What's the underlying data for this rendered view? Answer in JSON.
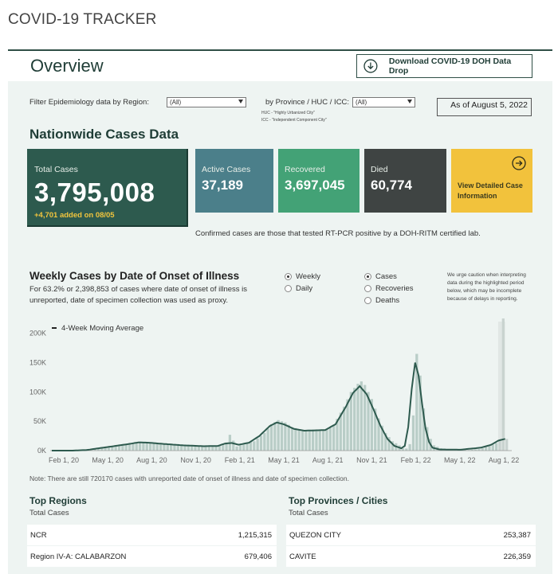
{
  "app_title": "COVID-19 TRACKER",
  "overview": {
    "title": "Overview",
    "download_label": "Download COVID-19 DOH Data Drop",
    "download_icon": "download-circle-icon"
  },
  "filters": {
    "region_label": "Filter Epidemiology data by Region:",
    "region_value": "(All)",
    "province_label": "by Province / HUC / ICC:",
    "province_value": "(All)",
    "huc_note": "HUC - \"Highly Urbanized City\"",
    "icc_note": "ICC - \"Independent Component City\"",
    "as_of": "As of August 5, 2022"
  },
  "nationwide": {
    "title": "Nationwide Cases Data",
    "total": {
      "label": "Total Cases",
      "value": "3,795,008",
      "added": "+4,701 added on 08/05"
    },
    "active": {
      "label": "Active Cases",
      "value": "37,189"
    },
    "recovered": {
      "label": "Recovered",
      "value": "3,697,045"
    },
    "died": {
      "label": "Died",
      "value": "60,774"
    },
    "detail_label": "View Detailed Case Information",
    "detail_icon": "arrow-right-circle-icon",
    "confirmed_note": "Confirmed cases are those that tested RT-PCR positive by a DOH-RITM certified lab.",
    "colors": {
      "total": "#2d5a4e",
      "active": "#4b7f8a",
      "recovered": "#43a276",
      "died": "#3f4443",
      "detail": "#f2c23c"
    }
  },
  "weekly": {
    "title": "Weekly Cases by Date of Onset of Illness",
    "subtitle": "For 63.2% or 2,398,853 of cases where date of onset of illness is unreported, date of specimen collection was used as proxy.",
    "period_options": [
      {
        "label": "Weekly",
        "selected": true
      },
      {
        "label": "Daily",
        "selected": false
      }
    ],
    "metric_options": [
      {
        "label": "Cases",
        "selected": true
      },
      {
        "label": "Recoveries",
        "selected": false
      },
      {
        "label": "Deaths",
        "selected": false
      }
    ],
    "caution": "We urge caution when interpreting data during the highlighted period below, which may be incomplete because of delays in reporting.",
    "note": "Note: There are still 720170 cases with unreported date of onset of illness and date of specimen collection."
  },
  "chart_data": {
    "type": "bar",
    "legend": "4-Week Moving Average",
    "legend_position": "top-left",
    "y_ticks": [
      "200K",
      "150K",
      "100K",
      "50K",
      "0K"
    ],
    "x_ticks": [
      "Feb 1, 20",
      "May 1, 20",
      "Aug 1, 20",
      "Nov 1, 20",
      "Feb 1, 21",
      "May 1, 21",
      "Aug 1, 21",
      "Nov 1, 21",
      "Feb 1, 22",
      "May 1, 22",
      "Aug 1, 22"
    ],
    "ylim": [
      0,
      220000
    ],
    "keyframes_week_value": [
      [
        0,
        0
      ],
      [
        6,
        0
      ],
      [
        10,
        800
      ],
      [
        16,
        6000
      ],
      [
        22,
        12000
      ],
      [
        25,
        15500
      ],
      [
        27,
        14500
      ],
      [
        32,
        12000
      ],
      [
        38,
        9000
      ],
      [
        44,
        7000
      ],
      [
        48,
        8000
      ],
      [
        50,
        14000
      ],
      [
        51,
        27000
      ],
      [
        53,
        7000
      ],
      [
        55,
        12000
      ],
      [
        58,
        16000
      ],
      [
        61,
        30000
      ],
      [
        63,
        45000
      ],
      [
        65,
        52000
      ],
      [
        67,
        48000
      ],
      [
        69,
        40000
      ],
      [
        72,
        35000
      ],
      [
        75,
        36000
      ],
      [
        78,
        34000
      ],
      [
        81,
        44000
      ],
      [
        84,
        75000
      ],
      [
        86,
        100000
      ],
      [
        88,
        114000
      ],
      [
        89,
        118000
      ],
      [
        90,
        112000
      ],
      [
        92,
        88000
      ],
      [
        94,
        55000
      ],
      [
        96,
        30000
      ],
      [
        98,
        16000
      ],
      [
        100,
        9000
      ],
      [
        101,
        4000
      ],
      [
        102,
        3500
      ],
      [
        103,
        11000
      ],
      [
        104,
        60000
      ],
      [
        105,
        165000
      ],
      [
        106,
        128000
      ],
      [
        107,
        72000
      ],
      [
        108,
        40000
      ],
      [
        109,
        20000
      ],
      [
        110,
        9000
      ],
      [
        112,
        4000
      ],
      [
        115,
        2000
      ],
      [
        120,
        1200
      ],
      [
        123,
        2500
      ],
      [
        126,
        8000
      ],
      [
        128,
        13000
      ],
      [
        129,
        18000
      ],
      [
        130,
        230000
      ],
      [
        131,
        20000
      ]
    ],
    "moving_average_keyframes": [
      [
        0,
        0
      ],
      [
        6,
        0
      ],
      [
        10,
        1000
      ],
      [
        16,
        6000
      ],
      [
        22,
        11000
      ],
      [
        25,
        14000
      ],
      [
        28,
        13500
      ],
      [
        32,
        11500
      ],
      [
        38,
        9000
      ],
      [
        44,
        7500
      ],
      [
        48,
        8000
      ],
      [
        50,
        12000
      ],
      [
        52,
        13000
      ],
      [
        54,
        10000
      ],
      [
        57,
        13500
      ],
      [
        60,
        25000
      ],
      [
        63,
        42000
      ],
      [
        65,
        48000
      ],
      [
        67,
        45000
      ],
      [
        70,
        37000
      ],
      [
        73,
        34000
      ],
      [
        76,
        34500
      ],
      [
        79,
        35000
      ],
      [
        82,
        45000
      ],
      [
        85,
        75000
      ],
      [
        87,
        98000
      ],
      [
        89,
        110000
      ],
      [
        91,
        96000
      ],
      [
        93,
        70000
      ],
      [
        95,
        42000
      ],
      [
        97,
        20000
      ],
      [
        99,
        8000
      ],
      [
        101,
        4000
      ],
      [
        102,
        8000
      ],
      [
        103,
        40000
      ],
      [
        104,
        105000
      ],
      [
        105,
        150000
      ],
      [
        106,
        128000
      ],
      [
        107,
        80000
      ],
      [
        108,
        38000
      ],
      [
        109,
        15000
      ],
      [
        110,
        5000
      ],
      [
        112,
        2000
      ],
      [
        118,
        1500
      ],
      [
        124,
        5000
      ],
      [
        127,
        10000
      ],
      [
        129,
        17000
      ],
      [
        131,
        20000
      ]
    ],
    "total_weeks": 132,
    "highlight_weeks": [
      129,
      131
    ],
    "colors": {
      "bars": "#b9cdc7",
      "highlight": "#d8dedc",
      "line": "#2d5a4e"
    }
  },
  "top_regions": {
    "title": "Top Regions",
    "subtitle": "Total Cases",
    "rows": [
      {
        "name": "NCR",
        "value": "1,215,315"
      },
      {
        "name": "Region IV-A: CALABARZON",
        "value": "679,406"
      }
    ]
  },
  "top_provinces": {
    "title": "Top Provinces / Cities",
    "subtitle": "Total Cases",
    "rows": [
      {
        "name": "QUEZON CITY",
        "value": "253,387"
      },
      {
        "name": "CAVITE",
        "value": "226,359"
      }
    ]
  }
}
